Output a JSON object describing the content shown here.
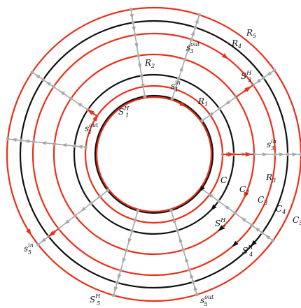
{
  "diagram": {
    "colors": {
      "red": "#e8301c",
      "black": "#111111",
      "gray": "#a8a8a8"
    },
    "labels": {
      "R1": {
        "main": "R",
        "sub": "1"
      },
      "R2": {
        "main": "R",
        "sub": "2"
      },
      "R3": {
        "main": "R",
        "sub": "3"
      },
      "R4": {
        "main": "R",
        "sub": "4"
      },
      "R5": {
        "main": "R",
        "sub": "5"
      },
      "C1": {
        "main": "C",
        "sub": "1"
      },
      "C2": {
        "main": "C",
        "sub": "2"
      },
      "C3": {
        "main": "C",
        "sub": "3"
      },
      "C4": {
        "main": "C",
        "sub": "4"
      },
      "C5": {
        "main": "C",
        "sub": "5"
      },
      "S1H": {
        "main": "S",
        "sub": "1",
        "sup": "H"
      },
      "S2H": {
        "main": "S",
        "sub": "2",
        "sup": "H"
      },
      "S3H": {
        "main": "S",
        "sub": "3",
        "sup": "H"
      },
      "S4H": {
        "main": "S",
        "sub": "4",
        "sup": "H"
      },
      "S5H": {
        "main": "S",
        "sub": "5",
        "sup": "H"
      },
      "s1in": {
        "main": "s",
        "sub": "1",
        "sup": "in"
      },
      "s1out": {
        "main": "s",
        "sub": "1",
        "sup": "out"
      },
      "s3in": {
        "main": "s",
        "sub": "3",
        "sup": "in"
      },
      "s3out": {
        "main": "s",
        "sub": "3",
        "sup": "out"
      },
      "s5in": {
        "main": "s",
        "sub": "5",
        "sup": "in"
      },
      "s5out": {
        "main": "s",
        "sub": "5",
        "sup": "out"
      }
    }
  }
}
